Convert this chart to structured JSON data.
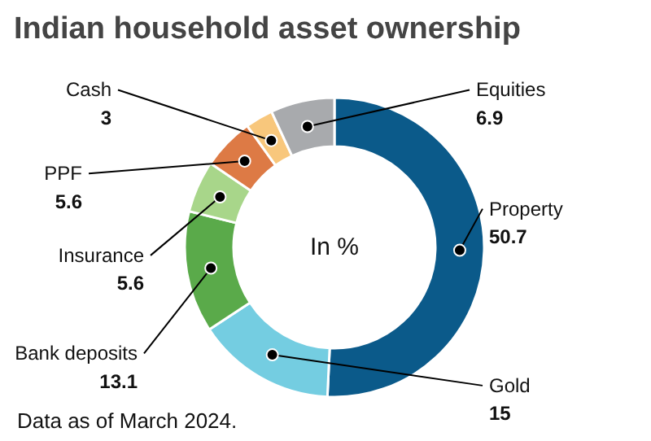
{
  "chart_data": {
    "type": "donut",
    "title": "Indian household asset ownership",
    "categories": [
      "Property",
      "Gold",
      "Bank deposits",
      "Insurance",
      "PPF",
      "Cash",
      "Equities"
    ],
    "values": [
      50.7,
      15,
      13.1,
      5.6,
      5.6,
      3,
      6.9
    ],
    "colors": [
      "#0b5a8a",
      "#74cde1",
      "#5aaa4a",
      "#a8d68a",
      "#dd7a45",
      "#f8c77c",
      "#a8aaad"
    ],
    "data_labels": true,
    "annotations": [
      "In %",
      "Data as of March 2024."
    ]
  }
}
